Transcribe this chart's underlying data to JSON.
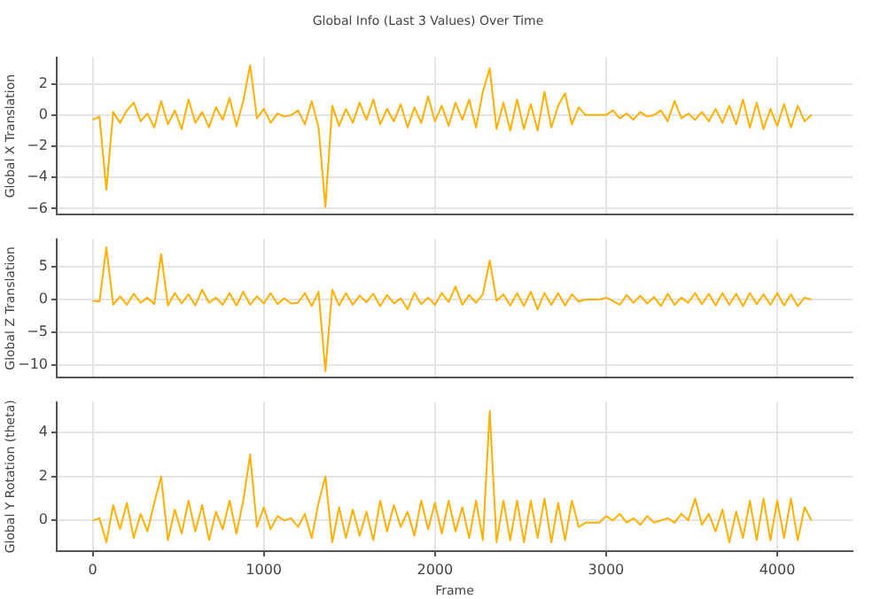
{
  "chart_data": [
    {
      "type": "line",
      "title": "Global Info (Last 3 Values) Over Time",
      "ylabel": "Global X Translation",
      "tick_labels": "y",
      "grid": true,
      "xlim": [
        -210,
        4440
      ],
      "xticks": [
        0,
        1000,
        2000,
        3000,
        4000
      ],
      "ylim": [
        -6.4,
        3.7
      ],
      "yticks": [
        -6,
        -4,
        -2,
        0,
        2
      ],
      "x": [
        0,
        40,
        80,
        120,
        160,
        200,
        240,
        280,
        320,
        360,
        400,
        440,
        480,
        520,
        560,
        600,
        640,
        680,
        720,
        760,
        800,
        840,
        880,
        920,
        960,
        1000,
        1040,
        1080,
        1120,
        1160,
        1200,
        1240,
        1280,
        1320,
        1360,
        1400,
        1440,
        1480,
        1520,
        1560,
        1600,
        1640,
        1680,
        1720,
        1760,
        1800,
        1840,
        1880,
        1920,
        1960,
        2000,
        2040,
        2080,
        2120,
        2160,
        2200,
        2240,
        2280,
        2320,
        2360,
        2400,
        2440,
        2480,
        2520,
        2560,
        2600,
        2640,
        2680,
        2720,
        2760,
        2800,
        2840,
        2880,
        2920,
        2960,
        3000,
        3040,
        3080,
        3120,
        3160,
        3200,
        3240,
        3280,
        3320,
        3360,
        3400,
        3440,
        3480,
        3520,
        3560,
        3600,
        3640,
        3680,
        3720,
        3760,
        3800,
        3840,
        3880,
        3920,
        3960,
        4000,
        4040,
        4080,
        4120,
        4160,
        4200
      ],
      "series": [
        {
          "color": "#ffb000",
          "values": [
            -0.3,
            -0.1,
            -4.8,
            0.2,
            -0.5,
            0.3,
            0.8,
            -0.4,
            0.1,
            -0.8,
            0.9,
            -0.6,
            0.3,
            -0.9,
            1.0,
            -0.5,
            0.2,
            -0.8,
            0.5,
            -0.3,
            1.1,
            -0.7,
            0.9,
            3.2,
            -0.2,
            0.4,
            -0.5,
            0.1,
            -0.1,
            0.0,
            0.3,
            -0.6,
            0.9,
            -0.8,
            -5.9,
            0.6,
            -0.7,
            0.4,
            -0.5,
            0.8,
            -0.3,
            1.0,
            -0.6,
            0.4,
            -0.4,
            0.7,
            -0.8,
            0.5,
            -0.5,
            1.2,
            -0.4,
            0.6,
            -0.7,
            0.8,
            -0.3,
            1.0,
            -0.8,
            1.5,
            3.0,
            -0.9,
            0.8,
            -1.0,
            1.0,
            -0.9,
            0.7,
            -1.0,
            1.5,
            -0.8,
            0.6,
            1.4,
            -0.6,
            0.5,
            0.0,
            0.0,
            0.0,
            0.0,
            0.3,
            -0.2,
            0.1,
            -0.3,
            0.2,
            -0.1,
            0.0,
            0.3,
            -0.4,
            0.9,
            -0.2,
            0.1,
            -0.3,
            0.2,
            -0.4,
            0.4,
            -0.5,
            0.6,
            -0.6,
            1.0,
            -0.8,
            0.8,
            -0.9,
            0.4,
            -0.7,
            0.7,
            -0.8,
            0.6,
            -0.4,
            0.0
          ]
        }
      ]
    },
    {
      "type": "line",
      "ylabel": "Global Z Translation",
      "tick_labels": "y",
      "grid": true,
      "xlim": [
        -210,
        4440
      ],
      "xticks": [
        0,
        1000,
        2000,
        3000,
        4000
      ],
      "ylim": [
        -12,
        9.3
      ],
      "yticks": [
        -10,
        -5,
        0,
        5
      ],
      "x": [
        0,
        40,
        80,
        120,
        160,
        200,
        240,
        280,
        320,
        360,
        400,
        440,
        480,
        520,
        560,
        600,
        640,
        680,
        720,
        760,
        800,
        840,
        880,
        920,
        960,
        1000,
        1040,
        1080,
        1120,
        1160,
        1200,
        1240,
        1280,
        1320,
        1360,
        1400,
        1440,
        1480,
        1520,
        1560,
        1600,
        1640,
        1680,
        1720,
        1760,
        1800,
        1840,
        1880,
        1920,
        1960,
        2000,
        2040,
        2080,
        2120,
        2160,
        2200,
        2240,
        2280,
        2320,
        2360,
        2400,
        2440,
        2480,
        2520,
        2560,
        2600,
        2640,
        2680,
        2720,
        2760,
        2800,
        2840,
        2880,
        2920,
        2960,
        3000,
        3040,
        3080,
        3120,
        3160,
        3200,
        3240,
        3280,
        3320,
        3360,
        3400,
        3440,
        3480,
        3520,
        3560,
        3600,
        3640,
        3680,
        3720,
        3760,
        3800,
        3840,
        3880,
        3920,
        3960,
        4000,
        4040,
        4080,
        4120,
        4160,
        4200
      ],
      "series": [
        {
          "color": "#ffb000",
          "values": [
            -0.2,
            -0.3,
            8,
            -0.8,
            0.5,
            -0.8,
            0.9,
            -0.5,
            0.3,
            -0.7,
            7,
            -0.9,
            1.0,
            -0.6,
            0.8,
            -0.9,
            1.5,
            -0.5,
            0.3,
            -0.8,
            1.0,
            -0.9,
            1.2,
            -0.8,
            0.5,
            -0.6,
            1.0,
            -0.7,
            0.2,
            -0.6,
            -0.5,
            1.0,
            -1.0,
            1.2,
            -11,
            1.5,
            -0.9,
            1.0,
            -0.8,
            0.6,
            -0.4,
            0.9,
            -1.0,
            0.7,
            -0.6,
            0.2,
            -1.5,
            1.0,
            -0.7,
            0.3,
            -0.8,
            1.0,
            -0.4,
            2.0,
            -0.8,
            0.7,
            -0.5,
            0.8,
            6,
            -0.2,
            0.8,
            -0.9,
            1.0,
            -1.0,
            1.2,
            -1.5,
            1.0,
            -0.8,
            1.0,
            -0.9,
            0.8,
            -0.3,
            0.0,
            0.0,
            0.0,
            0.3,
            -0.2,
            -0.8,
            0.7,
            -0.5,
            0.6,
            -0.6,
            0.4,
            -1.0,
            0.9,
            -0.8,
            0.3,
            -0.5,
            1.0,
            -0.7,
            0.9,
            -0.9,
            1.0,
            -0.8,
            0.9,
            -1.0,
            1.0,
            -0.7,
            0.8,
            -0.8,
            1.0,
            -0.9,
            0.8,
            -1.0,
            0.3,
            0.0
          ]
        }
      ]
    },
    {
      "type": "line",
      "xlabel": "Frame",
      "ylabel": "Global Y Rotation (theta)",
      "grid": true,
      "xlim": [
        -210,
        4440
      ],
      "xticks": [
        0,
        1000,
        2000,
        3000,
        4000
      ],
      "ylim": [
        -1.4,
        5.4
      ],
      "yticks": [
        0,
        2,
        4
      ],
      "x": [
        0,
        40,
        80,
        120,
        160,
        200,
        240,
        280,
        320,
        360,
        400,
        440,
        480,
        520,
        560,
        600,
        640,
        680,
        720,
        760,
        800,
        840,
        880,
        920,
        960,
        1000,
        1040,
        1080,
        1120,
        1160,
        1200,
        1240,
        1280,
        1320,
        1360,
        1400,
        1440,
        1480,
        1520,
        1560,
        1600,
        1640,
        1680,
        1720,
        1760,
        1800,
        1840,
        1880,
        1920,
        1960,
        2000,
        2040,
        2080,
        2120,
        2160,
        2200,
        2240,
        2280,
        2320,
        2360,
        2400,
        2440,
        2480,
        2520,
        2560,
        2600,
        2640,
        2680,
        2720,
        2760,
        2800,
        2840,
        2880,
        2920,
        2960,
        3000,
        3040,
        3080,
        3120,
        3160,
        3200,
        3240,
        3280,
        3320,
        3360,
        3400,
        3440,
        3480,
        3520,
        3560,
        3600,
        3640,
        3680,
        3720,
        3760,
        3800,
        3840,
        3880,
        3920,
        3960,
        4000,
        4040,
        4080,
        4120,
        4160,
        4200
      ],
      "series": [
        {
          "color": "#ffb000",
          "values": [
            0.0,
            0.1,
            -1.0,
            0.7,
            -0.4,
            0.8,
            -0.8,
            0.3,
            -0.5,
            0.8,
            2.0,
            -0.9,
            0.5,
            -0.6,
            0.9,
            -0.5,
            0.7,
            -0.9,
            0.4,
            -0.4,
            0.9,
            -0.6,
            0.9,
            3.0,
            -0.3,
            0.6,
            -0.4,
            0.2,
            0.0,
            0.1,
            -0.3,
            0.3,
            -0.8,
            0.8,
            2.0,
            -1.0,
            0.6,
            -0.8,
            0.5,
            -0.7,
            0.4,
            -0.9,
            0.9,
            -0.5,
            0.7,
            -0.3,
            0.4,
            -0.7,
            0.9,
            -0.4,
            0.8,
            -0.6,
            0.9,
            -0.5,
            0.6,
            -0.8,
            0.9,
            -0.9,
            5.0,
            -1.0,
            0.9,
            -0.9,
            0.9,
            -1.0,
            0.9,
            -0.8,
            1.0,
            -1.0,
            0.8,
            -0.9,
            0.9,
            -0.3,
            -0.1,
            -0.1,
            -0.1,
            0.2,
            0.0,
            0.3,
            -0.1,
            0.1,
            -0.2,
            0.2,
            -0.1,
            0.0,
            0.1,
            -0.1,
            0.3,
            0.0,
            1.0,
            -0.2,
            0.3,
            -0.5,
            0.5,
            -1.0,
            0.4,
            -0.8,
            0.9,
            -0.9,
            1.0,
            -0.9,
            0.9,
            -0.8,
            1.0,
            -0.9,
            0.6,
            0.0
          ]
        }
      ]
    }
  ]
}
